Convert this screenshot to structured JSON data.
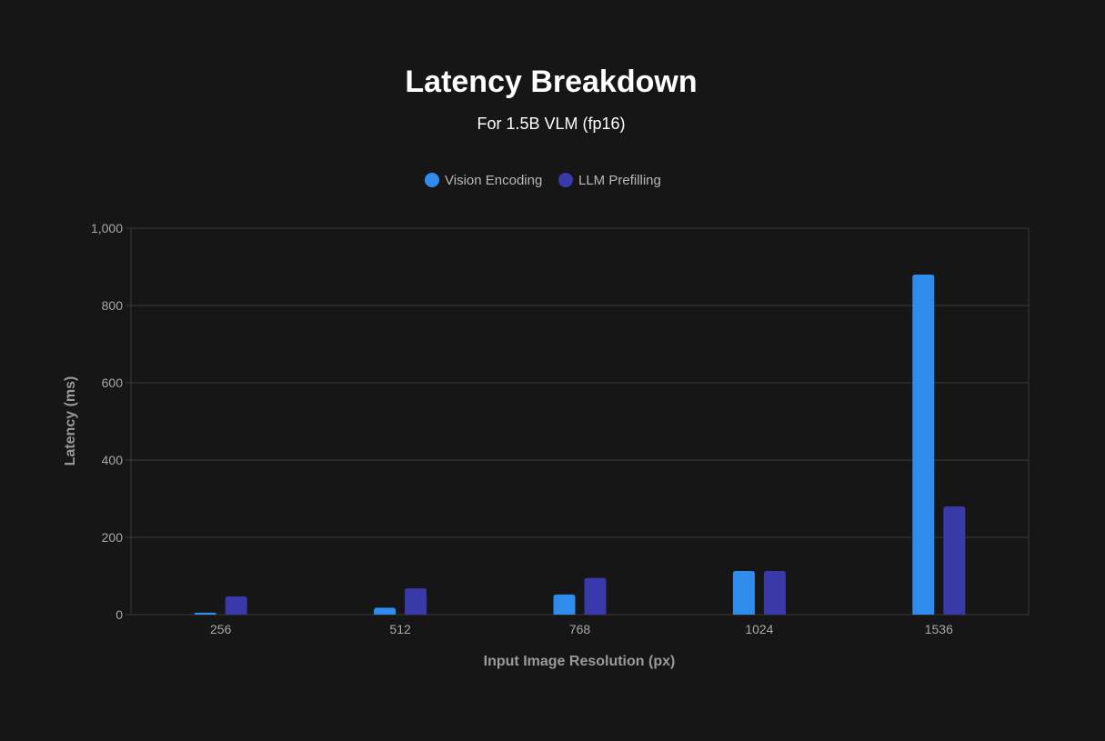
{
  "chart_data": {
    "type": "bar",
    "title": "Latency Breakdown",
    "subtitle": "For 1.5B VLM (fp16)",
    "xlabel": "Input Image Resolution (px)",
    "ylabel": "Latency (ms)",
    "categories": [
      "256",
      "512",
      "768",
      "1024",
      "1536"
    ],
    "series": [
      {
        "name": "Vision Encoding",
        "color": "#2f8cec",
        "values": [
          5,
          18,
          52,
          113,
          880
        ]
      },
      {
        "name": "LLM Prefilling",
        "color": "#3a39aa",
        "values": [
          47,
          68,
          95,
          113,
          280
        ]
      }
    ],
    "ylim": [
      0,
      1000
    ],
    "yticks": [
      "0",
      "200",
      "400",
      "600",
      "800",
      "1,000"
    ],
    "ytick_values": [
      0,
      200,
      400,
      600,
      800,
      1000
    ],
    "grid": true,
    "legend_position": "top-center"
  },
  "background": "#161616"
}
